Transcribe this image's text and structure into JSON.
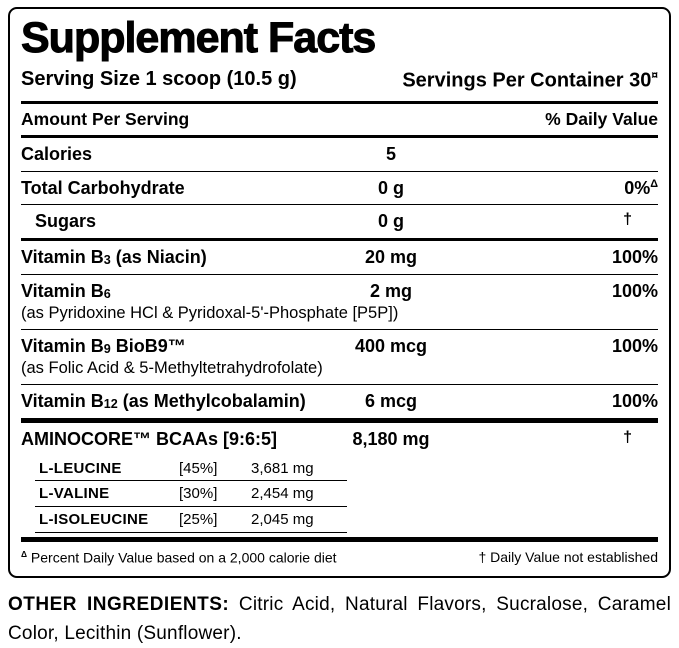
{
  "title": "Supplement Facts",
  "serving": {
    "size": "Serving Size 1 scoop (10.5 g)",
    "per_container": "Servings Per Container 30",
    "per_container_mark": "¤"
  },
  "columns": {
    "amount_per_serving": "Amount Per Serving",
    "daily_value": "% Daily Value"
  },
  "rows": {
    "calories": {
      "name": "Calories",
      "amount": "5"
    },
    "total_carbohydrate": {
      "name": "Total Carbohydrate",
      "amount": "0 g",
      "dv": "0%",
      "dv_mark": "Δ"
    },
    "sugars": {
      "name": "Sugars",
      "amount": "0 g",
      "dv_mark": "†"
    },
    "vitamin_b3": {
      "name_pre": "Vitamin B",
      "name_sub": "3",
      "name_post": " (as Niacin)",
      "amount": "20 mg",
      "dv": "100%"
    },
    "vitamin_b6": {
      "name_pre": "Vitamin B",
      "name_sub": "6",
      "name_post": "",
      "subline": "(as Pyridoxine HCl & Pyridoxal-5'-Phosphate [P5P])",
      "amount": "2 mg",
      "dv": "100%"
    },
    "vitamin_b9": {
      "name_pre": "Vitamin B",
      "name_sub": "9",
      "name_post": " BioB9™",
      "subline": "(as Folic Acid & 5-Methyltetrahydrofolate)",
      "amount": "400 mcg",
      "dv": "100%"
    },
    "vitamin_b12": {
      "name_pre": "Vitamin B",
      "name_sub": "12",
      "name_post": " (as Methylcobalamin)",
      "amount": "6 mcg",
      "dv": "100%"
    },
    "aminocore": {
      "name": "AMINOCORE™ BCAAs [9:6:5]",
      "amount": "8,180 mg",
      "dv_mark": "†"
    }
  },
  "amino_acids": [
    {
      "name": "L-LEUCINE",
      "percent": "[45%]",
      "amount": "3,681 mg"
    },
    {
      "name": "L-VALINE",
      "percent": "[30%]",
      "amount": "2,454 mg"
    },
    {
      "name": "L-ISOLEUCINE",
      "percent": "[25%]",
      "amount": "2,045 mg"
    }
  ],
  "footnotes": {
    "dv_mark": "Δ",
    "dv_text": " Percent Daily Value based on a 2,000 calorie diet",
    "ne_mark": "†",
    "ne_text": " Daily Value not established"
  },
  "other_ingredients": {
    "label": "OTHER INGREDIENTS:",
    "text": " Citric Acid, Natural Flavors, Sucralose, Caramel Color, Lecithin (Sunflower)."
  }
}
